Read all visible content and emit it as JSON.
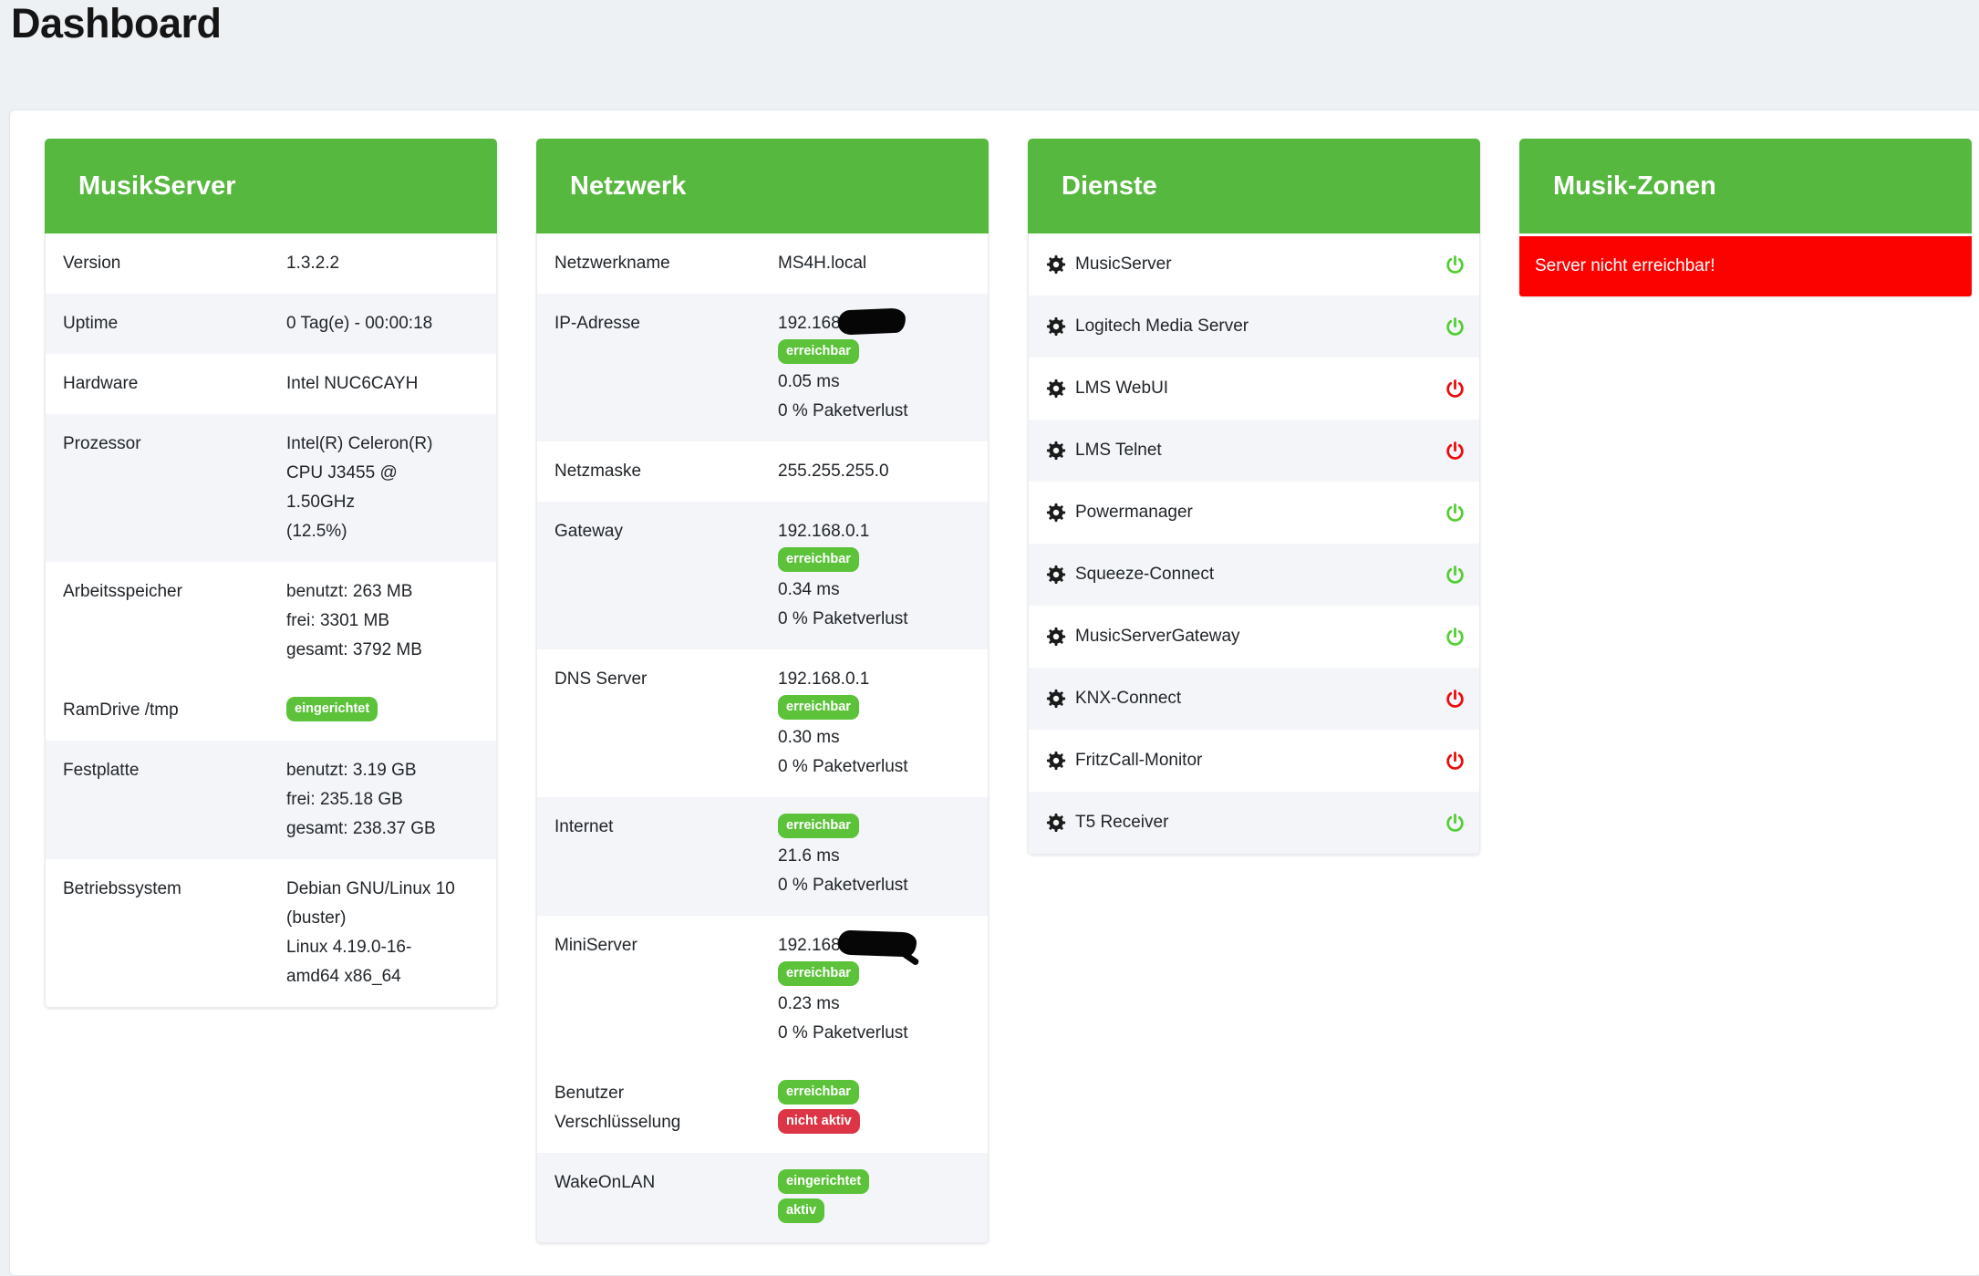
{
  "page": {
    "title": "Dashboard"
  },
  "colors": {
    "header_green": "#57b83f",
    "badge_green": "#5cc23a",
    "badge_red": "#dc3545",
    "alert_red": "#fb0200",
    "power_green": "#53cf33",
    "power_red": "#ee0b0b",
    "row_stripe": "#f3f5f9"
  },
  "icons": {
    "service_settings": "gear-icon",
    "service_state": "power-icon",
    "ip_hidden": "redaction-scribble"
  },
  "cards": [
    {
      "title": "MusikServer",
      "type": "properties",
      "rows": [
        {
          "label": [
            "Version"
          ],
          "shaded": false,
          "value": [
            {
              "type": "text",
              "text": "1.3.2.2"
            }
          ]
        },
        {
          "label": [
            "Uptime"
          ],
          "shaded": true,
          "value": [
            {
              "type": "text",
              "text": "0 Tag(e) - 00:00:18"
            }
          ]
        },
        {
          "label": [
            "Hardware"
          ],
          "shaded": false,
          "value": [
            {
              "type": "text",
              "text": "Intel NUC6CAYH"
            }
          ]
        },
        {
          "label": [
            "Prozessor"
          ],
          "shaded": true,
          "value": [
            {
              "type": "text",
              "text": "Intel(R) Celeron(R)"
            },
            {
              "type": "text",
              "text": "CPU J3455 @"
            },
            {
              "type": "text",
              "text": "1.50GHz"
            },
            {
              "type": "text",
              "text": "(12.5%)"
            }
          ]
        },
        {
          "label": [
            "Arbeitsspeicher"
          ],
          "shaded": false,
          "value": [
            {
              "type": "text",
              "text": "benutzt: 263 MB"
            },
            {
              "type": "text",
              "text": "frei: 3301 MB"
            },
            {
              "type": "text",
              "text": "gesamt: 3792 MB"
            }
          ]
        },
        {
          "label": [
            "RamDrive /tmp"
          ],
          "shaded": false,
          "value": [
            {
              "type": "badge",
              "color": "green",
              "text": "eingerichtet"
            }
          ]
        },
        {
          "label": [
            "Festplatte"
          ],
          "shaded": true,
          "value": [
            {
              "type": "text",
              "text": "benutzt: 3.19 GB"
            },
            {
              "type": "text",
              "text": "frei: 235.18 GB"
            },
            {
              "type": "text",
              "text": "gesamt: 238.37 GB"
            }
          ]
        },
        {
          "label": [
            "Betriebssystem"
          ],
          "shaded": false,
          "value": [
            {
              "type": "text",
              "text": "Debian GNU/Linux 10"
            },
            {
              "type": "text",
              "text": "(buster)"
            },
            {
              "type": "text",
              "text": "Linux 4.19.0-16-"
            },
            {
              "type": "text",
              "text": "amd64 x86_64"
            }
          ]
        }
      ]
    },
    {
      "title": "Netzwerk",
      "type": "properties",
      "rows": [
        {
          "label": [
            "Netzwerkname"
          ],
          "shaded": false,
          "value": [
            {
              "type": "text",
              "text": "MS4H.local"
            }
          ]
        },
        {
          "label": [
            "IP-Adresse"
          ],
          "shaded": true,
          "value": [
            {
              "type": "text",
              "text": "192.168",
              "redacted": true
            },
            {
              "type": "badge",
              "color": "green",
              "text": "erreichbar"
            },
            {
              "type": "text",
              "text": "0.05 ms"
            },
            {
              "type": "text",
              "text": "0 % Paketverlust"
            }
          ]
        },
        {
          "label": [
            "Netzmaske"
          ],
          "shaded": false,
          "value": [
            {
              "type": "text",
              "text": "255.255.255.0"
            }
          ]
        },
        {
          "label": [
            "Gateway"
          ],
          "shaded": true,
          "value": [
            {
              "type": "text",
              "text": "192.168.0.1"
            },
            {
              "type": "badge",
              "color": "green",
              "text": "erreichbar"
            },
            {
              "type": "text",
              "text": "0.34 ms"
            },
            {
              "type": "text",
              "text": "0 % Paketverlust"
            }
          ]
        },
        {
          "label": [
            "DNS Server"
          ],
          "shaded": false,
          "value": [
            {
              "type": "text",
              "text": "192.168.0.1"
            },
            {
              "type": "badge",
              "color": "green",
              "text": "erreichbar"
            },
            {
              "type": "text",
              "text": "0.30 ms"
            },
            {
              "type": "text",
              "text": "0 % Paketverlust"
            }
          ]
        },
        {
          "label": [
            "Internet"
          ],
          "shaded": true,
          "value": [
            {
              "type": "badge",
              "color": "green",
              "text": "erreichbar"
            },
            {
              "type": "text",
              "text": "21.6 ms"
            },
            {
              "type": "text",
              "text": "0 % Paketverlust"
            }
          ]
        },
        {
          "label": [
            "MiniServer"
          ],
          "shaded": false,
          "value": [
            {
              "type": "text",
              "text": "192.168",
              "redacted": true,
              "redaction_variant": "alt"
            },
            {
              "type": "badge",
              "color": "green",
              "text": "erreichbar"
            },
            {
              "type": "text",
              "text": "0.23 ms"
            },
            {
              "type": "text",
              "text": "0 % Paketverlust"
            }
          ]
        },
        {
          "label": [
            "Benutzer",
            "Verschlüsselung"
          ],
          "shaded": false,
          "value": [
            {
              "type": "badge",
              "color": "green",
              "text": "erreichbar"
            },
            {
              "type": "badge",
              "color": "red",
              "text": "nicht aktiv"
            }
          ]
        },
        {
          "label": [
            "WakeOnLAN"
          ],
          "shaded": true,
          "value": [
            {
              "type": "badge",
              "color": "green",
              "text": "eingerichtet"
            },
            {
              "type": "badge",
              "color": "green",
              "text": "aktiv"
            }
          ]
        }
      ]
    },
    {
      "title": "Dienste",
      "type": "services",
      "services": [
        {
          "name": "MusicServer",
          "state": "on",
          "shaded": false
        },
        {
          "name": "Logitech Media Server",
          "state": "on",
          "shaded": true
        },
        {
          "name": "LMS WebUI",
          "state": "off",
          "shaded": false
        },
        {
          "name": "LMS Telnet",
          "state": "off",
          "shaded": true
        },
        {
          "name": "Powermanager",
          "state": "on",
          "shaded": false
        },
        {
          "name": "Squeeze-Connect",
          "state": "on",
          "shaded": true
        },
        {
          "name": "MusicServerGateway",
          "state": "on",
          "shaded": false
        },
        {
          "name": "KNX-Connect",
          "state": "off",
          "shaded": true
        },
        {
          "name": "FritzCall-Monitor",
          "state": "off",
          "shaded": false
        },
        {
          "name": "T5 Receiver",
          "state": "on",
          "shaded": true
        }
      ]
    },
    {
      "title": "Musik-Zonen",
      "type": "alert",
      "alert": "Server nicht erreichbar!"
    }
  ]
}
